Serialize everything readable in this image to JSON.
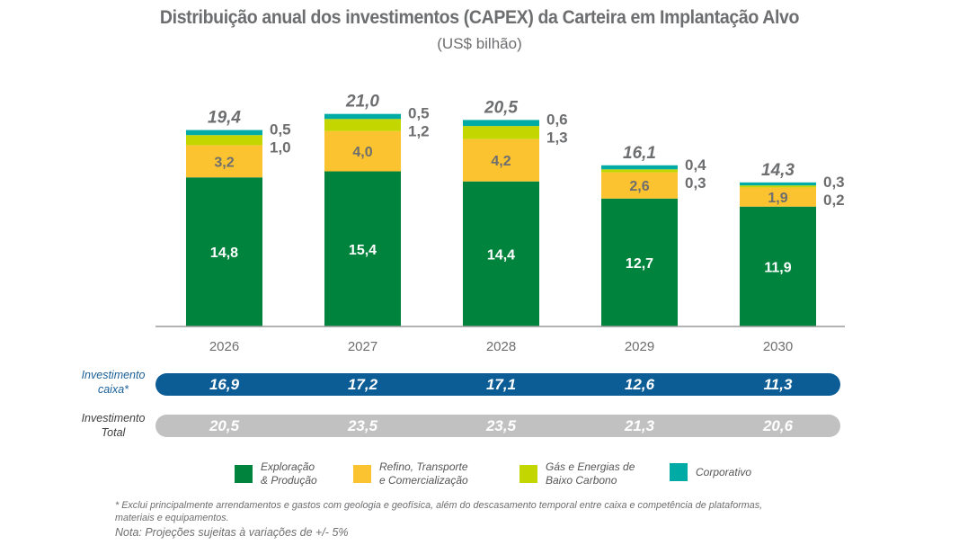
{
  "chart_data": {
    "type": "bar",
    "stacked": true,
    "title": "Distribuição anual dos investimentos (CAPEX) da Carteira em Implantação Alvo",
    "subtitle": "(US$ bilhão)",
    "xlabel": "",
    "ylabel": "",
    "categories": [
      "2026",
      "2027",
      "2028",
      "2029",
      "2030"
    ],
    "series": [
      {
        "name": "Exploração & Produção",
        "legend_lines": [
          "Exploração",
          "& Produção"
        ],
        "color": "#00843d",
        "label_color": "#ffffff",
        "values": [
          "14,8",
          "15,4",
          "14,4",
          "12,7",
          "11,9"
        ],
        "numeric": [
          14.8,
          15.4,
          14.4,
          12.7,
          11.9
        ],
        "label_position": "inside"
      },
      {
        "name": "Refino, Transporte e Comercialização",
        "legend_lines": [
          "Refino, Transporte",
          "e Comercialização"
        ],
        "color": "#fcc330",
        "label_color": "#6d6e70",
        "values": [
          "3,2",
          "4,0",
          "4,2",
          "2,6",
          "1,9"
        ],
        "numeric": [
          3.2,
          4.0,
          4.2,
          2.6,
          1.9
        ],
        "label_position": "inside"
      },
      {
        "name": "Gás e Energias de Baixo Carbono",
        "legend_lines": [
          "Gás e Energias de",
          "Baixo Carbono"
        ],
        "color": "#c4d600",
        "label_color": "#6d6e70",
        "values": [
          "1,0",
          "1,2",
          "1,3",
          "0,3",
          "0,2"
        ],
        "numeric": [
          1.0,
          1.2,
          1.3,
          0.3,
          0.2
        ],
        "label_position": "right"
      },
      {
        "name": "Corporativo",
        "legend_lines": [
          "Corporativo"
        ],
        "color": "#00aaa5",
        "label_color": "#6d6e70",
        "values": [
          "0,5",
          "0,5",
          "0,6",
          "0,4",
          "0,3"
        ],
        "numeric": [
          0.5,
          0.5,
          0.6,
          0.4,
          0.3
        ],
        "label_position": "right"
      }
    ],
    "totals": [
      "19,4",
      "21,0",
      "20,5",
      "16,1",
      "14,3"
    ],
    "totals_numeric": [
      19.4,
      21.0,
      20.5,
      16.1,
      14.3
    ],
    "ylim": [
      0,
      22
    ],
    "grid": false,
    "legend_placement": "bottom"
  },
  "rows": {
    "caixa": {
      "label_lines": [
        "Investimento",
        "caixa*"
      ],
      "color": "#0c5c96",
      "values": [
        "16,9",
        "17,2",
        "17,1",
        "12,6",
        "11,3"
      ]
    },
    "total": {
      "label_lines": [
        "Investimento",
        "Total"
      ],
      "color": "#c1c1c1",
      "values": [
        "20,5",
        "23,5",
        "23,5",
        "21,3",
        "20,6"
      ]
    }
  },
  "footnotes": {
    "line1": "* Exclui principalmente arrendamentos  e gastos com geologia e geofísica, além do descasamento temporal entre caixa e competência de plataformas,",
    "line2": "materiais e equipamentos.",
    "note": "Nota: Projeções sujeitas à variações de +/- 5%"
  }
}
